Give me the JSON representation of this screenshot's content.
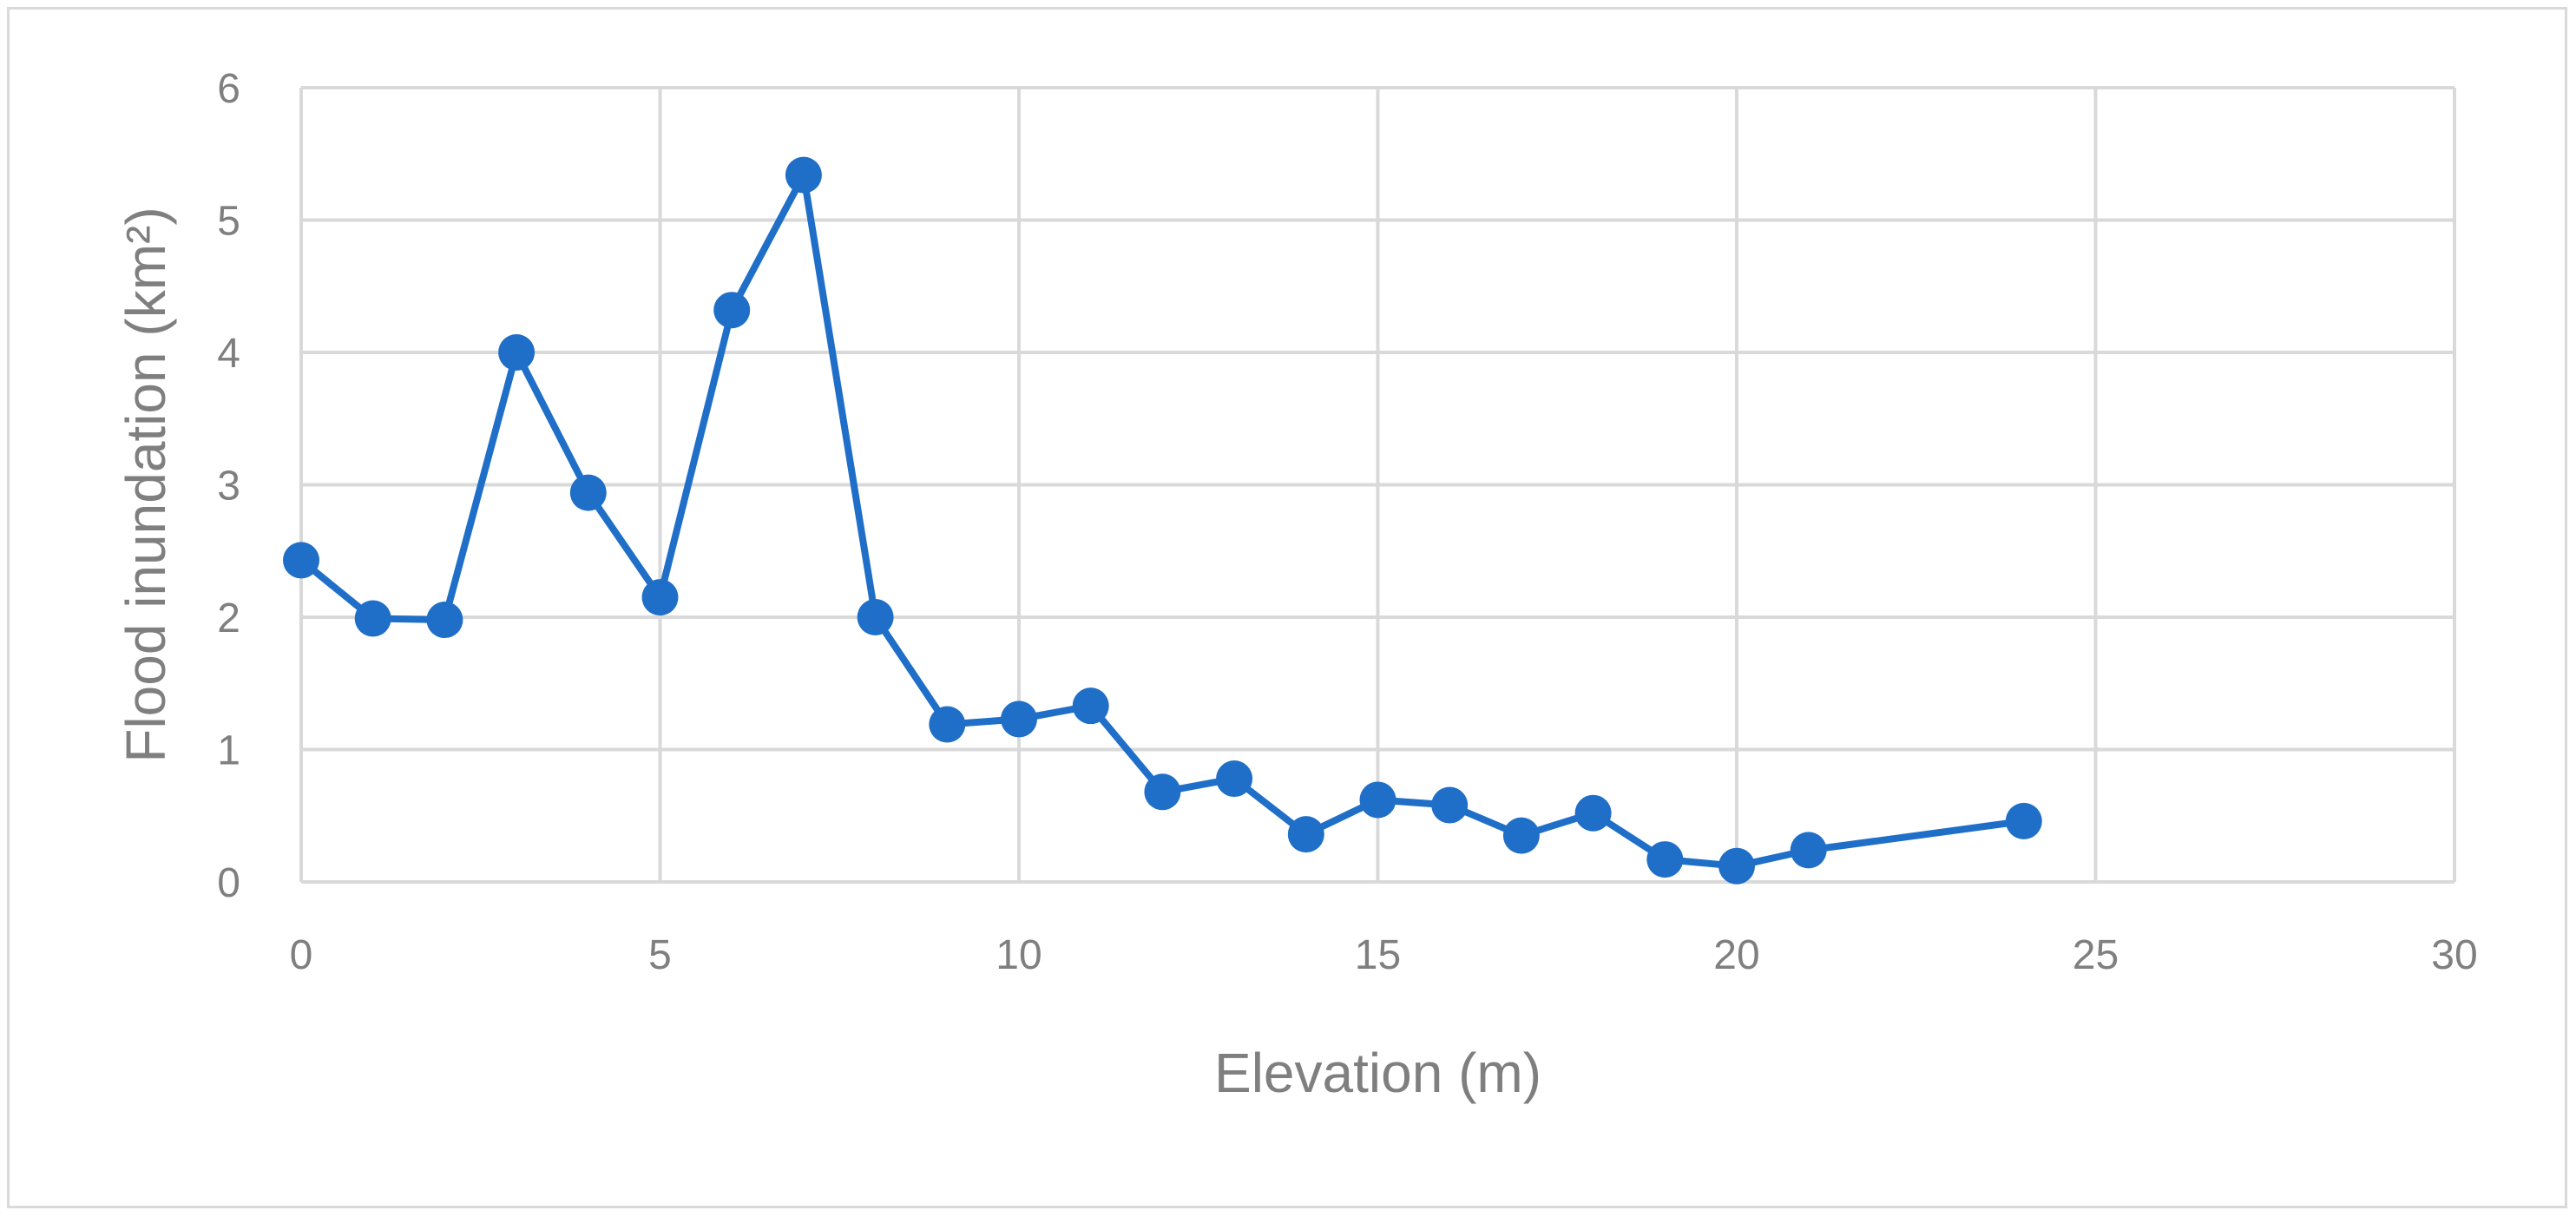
{
  "chart_data": {
    "type": "line",
    "title": "",
    "xlabel": "Elevation (m)",
    "ylabel": "Flood inundation (km²)",
    "xlim": [
      0,
      30
    ],
    "ylim": [
      0,
      6
    ],
    "xticks": [
      0,
      5,
      10,
      15,
      20,
      25,
      30
    ],
    "yticks": [
      0,
      1,
      2,
      3,
      4,
      5,
      6
    ],
    "grid": true,
    "legend": "none",
    "series": [
      {
        "color": "#1f6fc8",
        "markers": true,
        "points": [
          {
            "x": 0,
            "y": 2.43
          },
          {
            "x": 1,
            "y": 1.99
          },
          {
            "x": 2,
            "y": 1.98
          },
          {
            "x": 3,
            "y": 4.0
          },
          {
            "x": 4,
            "y": 2.94
          },
          {
            "x": 5,
            "y": 2.15
          },
          {
            "x": 6,
            "y": 4.32
          },
          {
            "x": 7,
            "y": 5.34
          },
          {
            "x": 8,
            "y": 2.0
          },
          {
            "x": 9,
            "y": 1.19
          },
          {
            "x": 10,
            "y": 1.23
          },
          {
            "x": 11,
            "y": 1.33
          },
          {
            "x": 12,
            "y": 0.68
          },
          {
            "x": 13,
            "y": 0.78
          },
          {
            "x": 14,
            "y": 0.36
          },
          {
            "x": 15,
            "y": 0.62
          },
          {
            "x": 16,
            "y": 0.58
          },
          {
            "x": 17,
            "y": 0.35
          },
          {
            "x": 18,
            "y": 0.52
          },
          {
            "x": 19,
            "y": 0.17
          },
          {
            "x": 20,
            "y": 0.12
          },
          {
            "x": 21,
            "y": 0.24
          },
          {
            "x": 24,
            "y": 0.46
          }
        ]
      }
    ],
    "colors": {
      "grid": "#d9d9d9",
      "text": "#7f7f7f",
      "frame": "#d9d9d9"
    }
  }
}
